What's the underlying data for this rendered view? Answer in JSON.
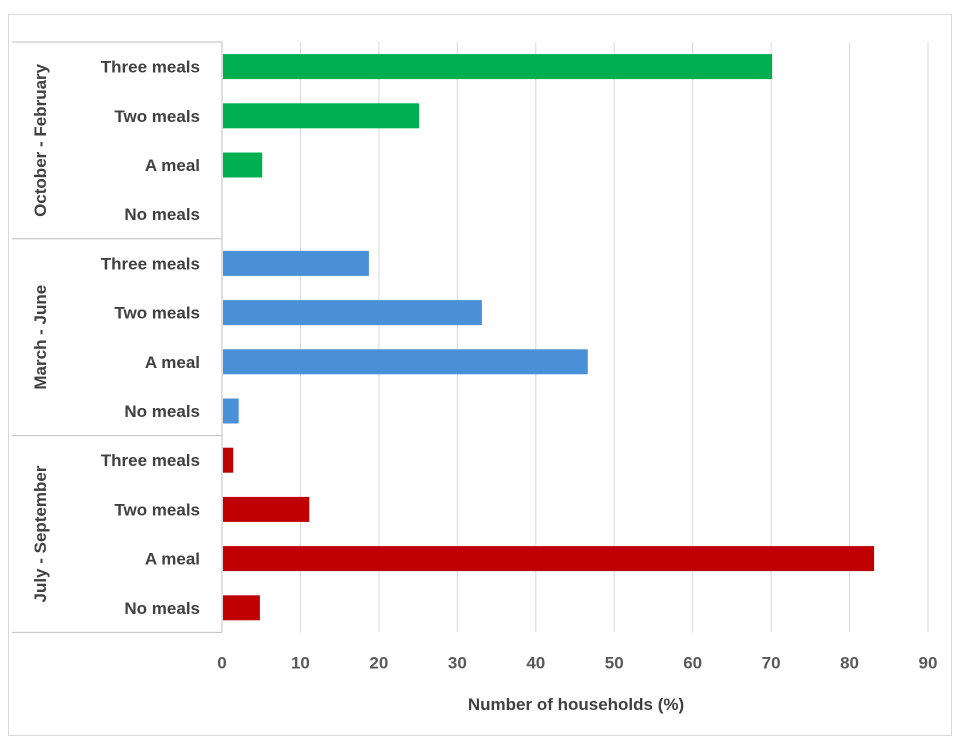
{
  "chart_data": {
    "type": "bar",
    "orientation": "horizontal",
    "xlabel": "Number of households (%)",
    "xlim": [
      0,
      90
    ],
    "xticks": [
      0,
      10,
      20,
      30,
      40,
      50,
      60,
      70,
      80,
      90
    ],
    "grid": "vertical",
    "groups": [
      {
        "name": "October - February",
        "color": "#00b050",
        "categories": [
          "Three meals",
          "Two meals",
          "A meal",
          "No meals"
        ],
        "values": [
          70,
          25,
          5,
          0
        ]
      },
      {
        "name": "March - June",
        "color": "#4a90d9",
        "categories": [
          "Three meals",
          "Two meals",
          "A meal",
          "No meals"
        ],
        "values": [
          18.6,
          33,
          46.5,
          2
        ]
      },
      {
        "name": "July - September",
        "color": "#c00000",
        "categories": [
          "Three meals",
          "Two meals",
          "A meal",
          "No meals"
        ],
        "values": [
          1.3,
          11,
          83,
          4.7
        ]
      }
    ]
  }
}
